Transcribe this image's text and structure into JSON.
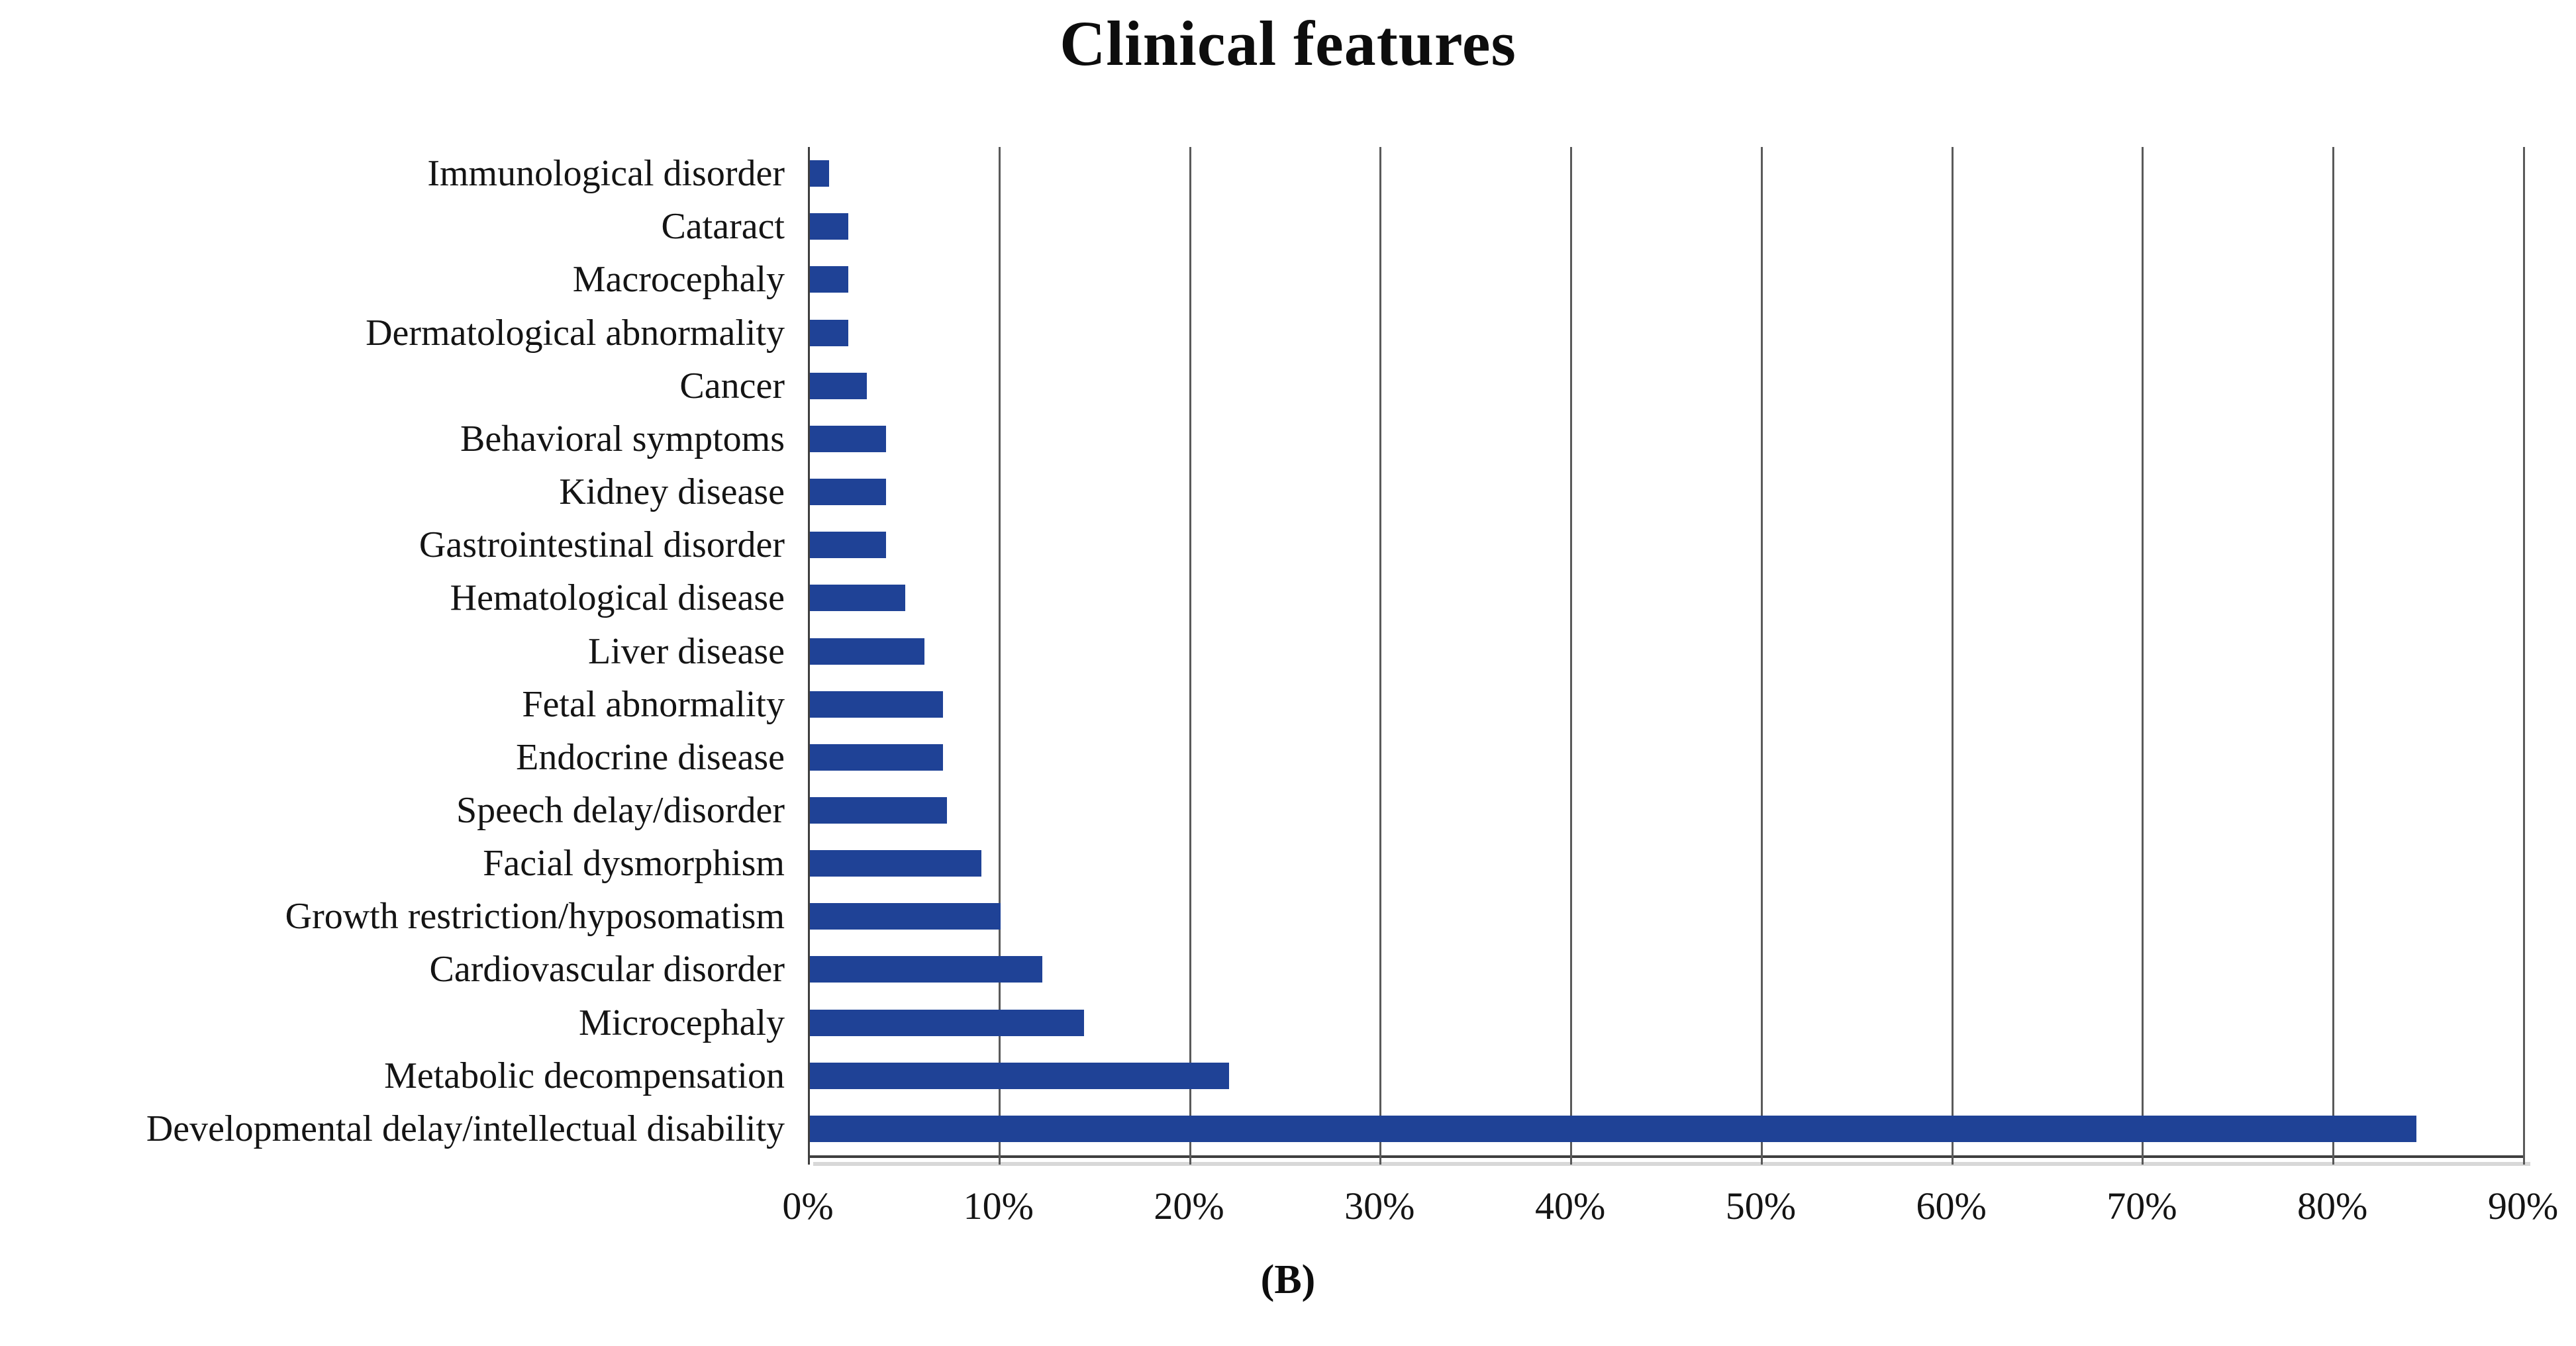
{
  "figure": {
    "title": "Clinical features",
    "label": "(B)"
  },
  "colors": {
    "bar": "#1f4296",
    "gridline": "#5a5a5a",
    "axis": "#3f3f3f",
    "text": "#141414",
    "background": "#ffffff"
  },
  "chart_data": {
    "type": "bar",
    "orientation": "horizontal",
    "title": "Clinical features",
    "categories": [
      "Immunological disorder",
      "Cataract",
      "Macrocephaly",
      "Dermatological abnormality",
      "Cancer",
      "Behavioral symptoms",
      "Kidney disease",
      "Gastrointestinal disorder",
      "Hematological disease",
      "Liver disease",
      "Fetal abnormality",
      "Endocrine disease",
      "Speech delay/disorder",
      "Facial dysmorphism",
      "Growth restriction/hyposomatism",
      "Cardiovascular disorder",
      "Microcephaly",
      "Metabolic decompensation",
      "Developmental delay/intellectual disability"
    ],
    "values": [
      1,
      2,
      2,
      2,
      3,
      4,
      4,
      4,
      5,
      6,
      7,
      7,
      7.2,
      9,
      10,
      12.2,
      14.4,
      22,
      84.3
    ],
    "unit": "%",
    "xlabel": "",
    "ylabel": "",
    "xlim": [
      0,
      90
    ],
    "x_ticks": [
      "0%",
      "10%",
      "20%",
      "30%",
      "40%",
      "50%",
      "60%",
      "70%",
      "80%",
      "90%"
    ],
    "grid": "vertical-on",
    "legend": "none",
    "figure_label": "(B)"
  }
}
